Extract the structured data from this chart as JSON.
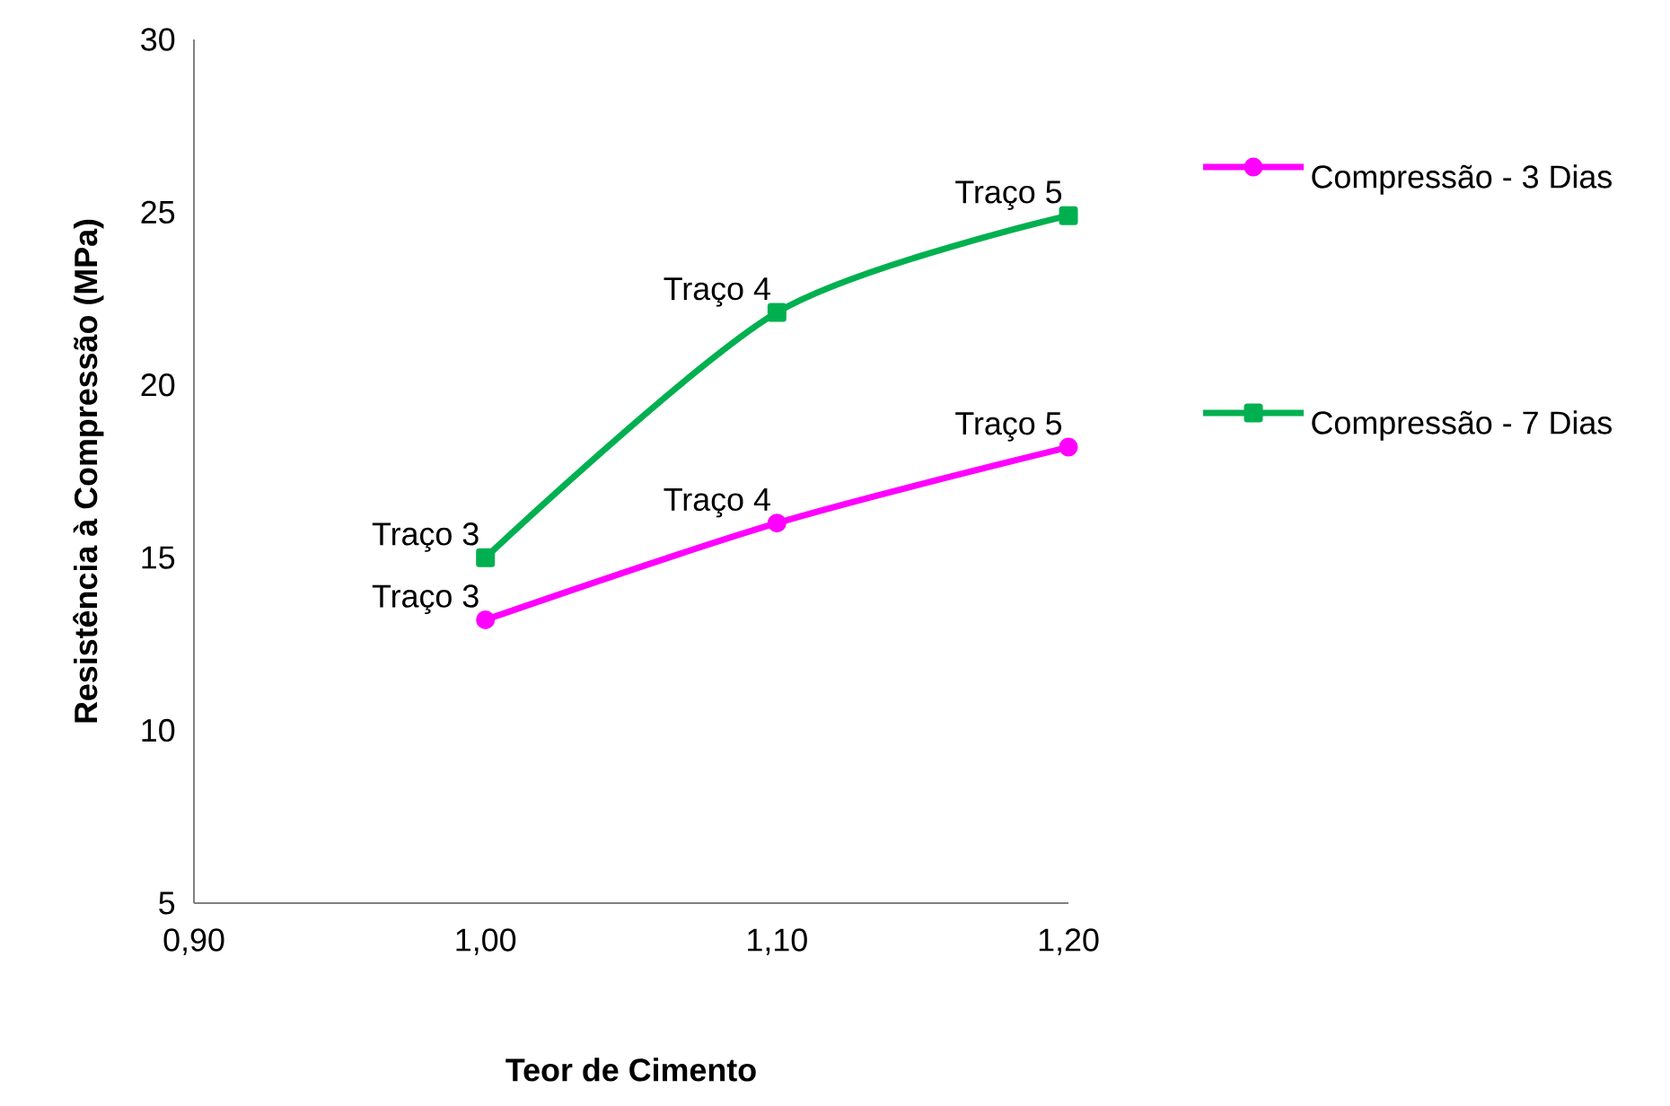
{
  "chart_data": {
    "type": "line",
    "xlabel": "Teor de Cimento",
    "ylabel": "Resistência à Compressão (MPa)",
    "x": [
      1.0,
      1.1,
      1.2
    ],
    "series": [
      {
        "name": "Compressão - 3 Dias",
        "color": "#ff00ff",
        "values": [
          13.2,
          16.0,
          18.2
        ],
        "marker": "circle"
      },
      {
        "name": "Compressão - 7 Dias",
        "color": "#00b050",
        "values": [
          15.0,
          22.1,
          24.9
        ],
        "marker": "square"
      }
    ],
    "xlim": [
      0.9,
      1.2
    ],
    "xticks": [
      {
        "value": 0.9,
        "label": "0,90"
      },
      {
        "value": 1.0,
        "label": "1,00"
      },
      {
        "value": 1.1,
        "label": "1,10"
      },
      {
        "value": 1.2,
        "label": "1,20"
      }
    ],
    "ylim": [
      5,
      30
    ],
    "yticks": [
      5,
      10,
      15,
      20,
      25,
      30
    ],
    "grid": false,
    "legend": "right",
    "annotations": [
      {
        "text": "Traço 3",
        "x": 1.0,
        "y": 13.2
      },
      {
        "text": "Traço 4",
        "x": 1.1,
        "y": 16.0
      },
      {
        "text": "Traço 5",
        "x": 1.2,
        "y": 18.2
      },
      {
        "text": "Traço 3",
        "x": 1.0,
        "y": 15.0
      },
      {
        "text": "Traço 4",
        "x": 1.1,
        "y": 22.1
      },
      {
        "text": "Traço 5",
        "x": 1.2,
        "y": 24.9
      }
    ]
  }
}
